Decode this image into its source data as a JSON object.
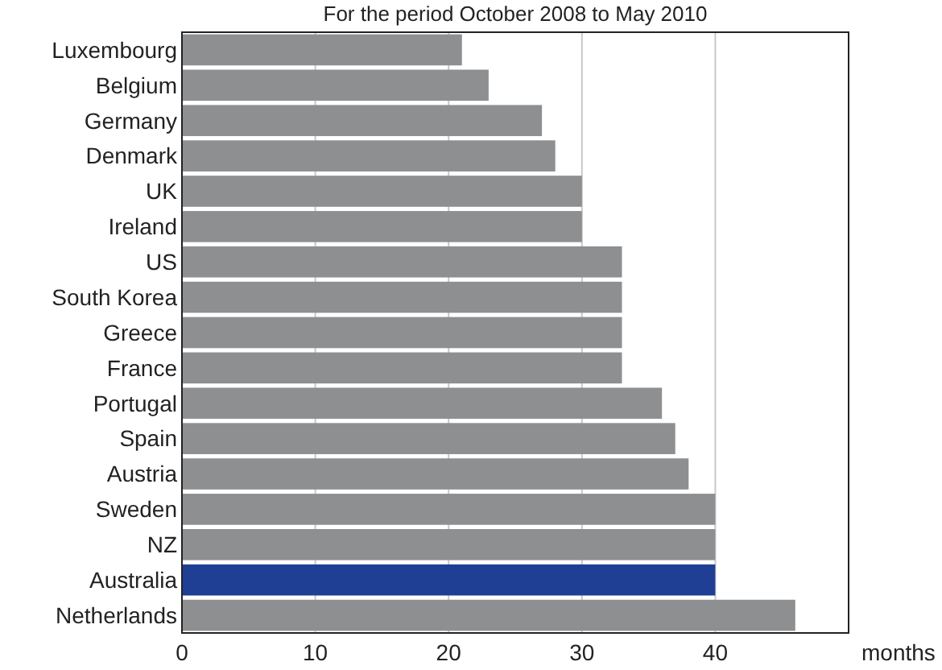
{
  "chart_data": {
    "type": "bar",
    "orientation": "horizontal",
    "title": "For the period October 2008 to May 2010",
    "xlabel": "months",
    "categories": [
      "Luxembourg",
      "Belgium",
      "Germany",
      "Denmark",
      "UK",
      "Ireland",
      "US",
      "South Korea",
      "Greece",
      "France",
      "Portugal",
      "Spain",
      "Austria",
      "Sweden",
      "NZ",
      "Australia",
      "Netherlands"
    ],
    "values": [
      21,
      23,
      27,
      28,
      30,
      30,
      33,
      33,
      33,
      33,
      36,
      37,
      38,
      40,
      40,
      40,
      46
    ],
    "colors": [
      "#8e8f91",
      "#8e8f91",
      "#8e8f91",
      "#8e8f91",
      "#8e8f91",
      "#8e8f91",
      "#8e8f91",
      "#8e8f91",
      "#8e8f91",
      "#8e8f91",
      "#8e8f91",
      "#8e8f91",
      "#8e8f91",
      "#8e8f91",
      "#8e8f91",
      "#1f3f94",
      "#8e8f91"
    ],
    "xlim": [
      0,
      50
    ],
    "xticks": [
      0,
      10,
      20,
      30,
      40
    ],
    "grid": "x"
  }
}
